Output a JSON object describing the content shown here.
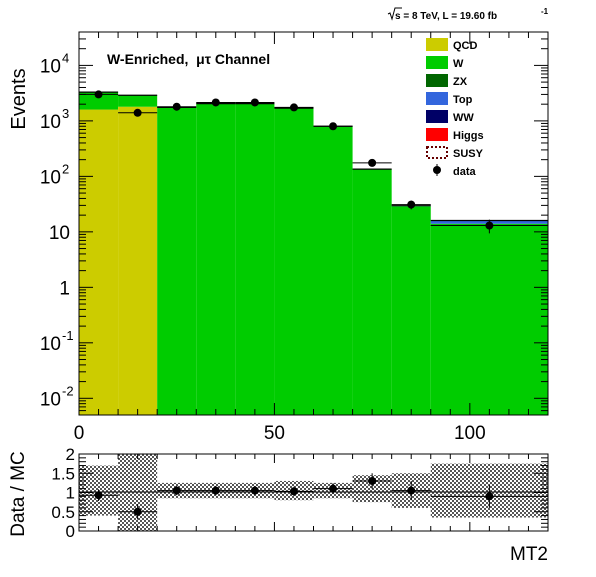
{
  "chart_data": [
    {
      "type": "bar",
      "stacked": true,
      "log_y": true,
      "header": "√s = 8 TeV, L = 19.60 fb⁻¹",
      "header_main": "s = 8 TeV, L = 19.60 fb",
      "header_sup": "-1",
      "annotation": "W-Enriched,  μτ Channel",
      "ylabel": "Events",
      "xlim": [
        0,
        120
      ],
      "ylim": [
        0.005,
        40000
      ],
      "x_ticks": [
        0,
        50,
        100
      ],
      "y_ticks": [
        {
          "value": 10000,
          "base": "10",
          "exp": "4"
        },
        {
          "value": 1000,
          "base": "10",
          "exp": "3"
        },
        {
          "value": 100,
          "base": "10",
          "exp": "2"
        },
        {
          "value": 10,
          "base": "10",
          "exp": ""
        },
        {
          "value": 1,
          "base": "1",
          "exp": ""
        },
        {
          "value": 0.1,
          "base": "10",
          "exp": "-1"
        },
        {
          "value": 0.01,
          "base": "10",
          "exp": "-2"
        }
      ],
      "bins": [
        [
          0,
          10
        ],
        [
          10,
          20
        ],
        [
          20,
          30
        ],
        [
          30,
          40
        ],
        [
          40,
          50
        ],
        [
          50,
          60
        ],
        [
          60,
          70
        ],
        [
          70,
          80
        ],
        [
          80,
          90
        ],
        [
          90,
          120
        ]
      ],
      "series": [
        {
          "name": "QCD",
          "color": "#cccc00",
          "values": [
            1600,
            1800,
            0,
            0,
            0,
            0,
            0,
            0,
            0,
            0
          ]
        },
        {
          "name": "W",
          "color": "#00cc00",
          "values": [
            1700,
            1100,
            1750,
            2050,
            2050,
            1700,
            800,
            135,
            29,
            14
          ]
        },
        {
          "name": "ZX",
          "color": "#006600",
          "values": [
            0,
            0,
            0,
            0,
            0,
            0,
            0,
            0,
            0,
            0
          ]
        },
        {
          "name": "Top",
          "color": "#3366dd",
          "values": [
            0,
            0,
            0,
            0,
            0,
            0,
            0,
            0,
            0.6,
            2.0
          ]
        }
      ],
      "legend_position": "top-right",
      "legend": [
        {
          "label": "QCD",
          "style": "fill",
          "color": "#cccc00"
        },
        {
          "label": "W",
          "style": "fill",
          "color": "#00cc00"
        },
        {
          "label": "ZX",
          "style": "fill",
          "color": "#006600"
        },
        {
          "label": "Top",
          "style": "fill",
          "color": "#3366dd"
        },
        {
          "label": "WW",
          "style": "fill",
          "color": "#000066"
        },
        {
          "label": "Higgs",
          "style": "fill",
          "color": "#ff0000"
        },
        {
          "label": "SUSY",
          "style": "dashed",
          "color": "#660000"
        },
        {
          "label": "data",
          "style": "marker",
          "color": "#000000"
        }
      ],
      "data": [
        {
          "x": 5,
          "y": 3000
        },
        {
          "x": 15,
          "y": 1400
        },
        {
          "x": 25,
          "y": 1800
        },
        {
          "x": 35,
          "y": 2150
        },
        {
          "x": 45,
          "y": 2150
        },
        {
          "x": 55,
          "y": 1750
        },
        {
          "x": 65,
          "y": 800
        },
        {
          "x": 75,
          "y": 175
        },
        {
          "x": 85,
          "y": 31
        },
        {
          "x": 105,
          "y": 13
        }
      ]
    },
    {
      "type": "scatter",
      "ylabel": "Data / MC",
      "xlabel": "MT2",
      "xlim": [
        0,
        120
      ],
      "ylim": [
        0,
        2
      ],
      "y_ticks": [
        "0",
        "0.5",
        "1",
        "1.5",
        "2"
      ],
      "band": [
        [
          0.4,
          1.7
        ],
        [
          0,
          2
        ],
        [
          0.85,
          1.25
        ],
        [
          0.85,
          1.25
        ],
        [
          0.85,
          1.25
        ],
        [
          0.8,
          1.3
        ],
        [
          0.85,
          1.25
        ],
        [
          0.75,
          1.45
        ],
        [
          0.6,
          1.5
        ],
        [
          0.35,
          1.75
        ]
      ],
      "ratio": [
        {
          "x": 5,
          "y": 0.93,
          "err": 0.15
        },
        {
          "x": 15,
          "y": 0.5,
          "err": 0.2
        },
        {
          "x": 25,
          "y": 1.05,
          "err": 0.12
        },
        {
          "x": 35,
          "y": 1.05,
          "err": 0.12
        },
        {
          "x": 45,
          "y": 1.05,
          "err": 0.12
        },
        {
          "x": 55,
          "y": 1.03,
          "err": 0.12
        },
        {
          "x": 65,
          "y": 1.1,
          "err": 0.14
        },
        {
          "x": 75,
          "y": 1.3,
          "err": 0.2
        },
        {
          "x": 85,
          "y": 1.05,
          "err": 0.25
        },
        {
          "x": 105,
          "y": 0.9,
          "err": 0.3
        }
      ]
    }
  ]
}
